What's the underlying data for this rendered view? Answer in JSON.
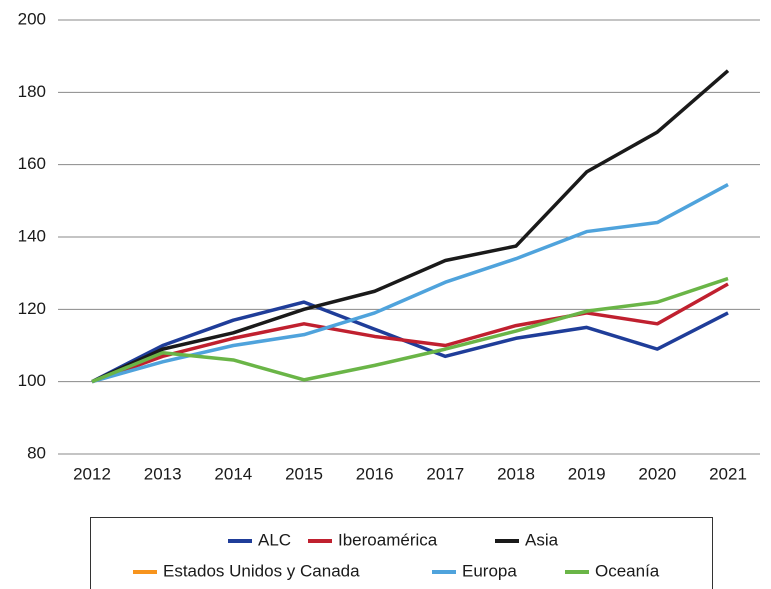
{
  "chart_data": {
    "type": "line",
    "categories": [
      "2012",
      "2013",
      "2014",
      "2015",
      "2016",
      "2017",
      "2018",
      "2019",
      "2020",
      "2021"
    ],
    "series": [
      {
        "name": "ALC",
        "color": "#1f3d99",
        "values": [
          100,
          110,
          117,
          122,
          114.5,
          107,
          112,
          115,
          109,
          119
        ]
      },
      {
        "name": "Iberoamérica",
        "color": "#c0202f",
        "values": [
          100,
          107,
          112,
          116,
          112.5,
          110,
          115.5,
          119,
          116,
          127
        ]
      },
      {
        "name": "Asia",
        "color": "#1a1a1a",
        "values": [
          100,
          109,
          113.5,
          120,
          125,
          133.5,
          137.5,
          158,
          169,
          186
        ]
      },
      {
        "name": "Estados Unidos y Canada",
        "color": "#f7941d",
        "values": [
          null,
          null,
          null,
          null,
          null,
          null,
          null,
          null,
          null,
          null
        ]
      },
      {
        "name": "Europa",
        "color": "#4fa3dc",
        "values": [
          100,
          105.5,
          110,
          113,
          119,
          127.5,
          134,
          141.5,
          144,
          154.5
        ]
      },
      {
        "name": "Oceanía",
        "color": "#6ab547",
        "values": [
          100,
          108,
          106,
          100.5,
          104.5,
          109,
          114,
          119.5,
          122,
          128.5
        ]
      }
    ],
    "ylim": [
      80,
      200
    ],
    "yticks": [
      80,
      100,
      120,
      140,
      160,
      180,
      200
    ],
    "grid": true
  }
}
